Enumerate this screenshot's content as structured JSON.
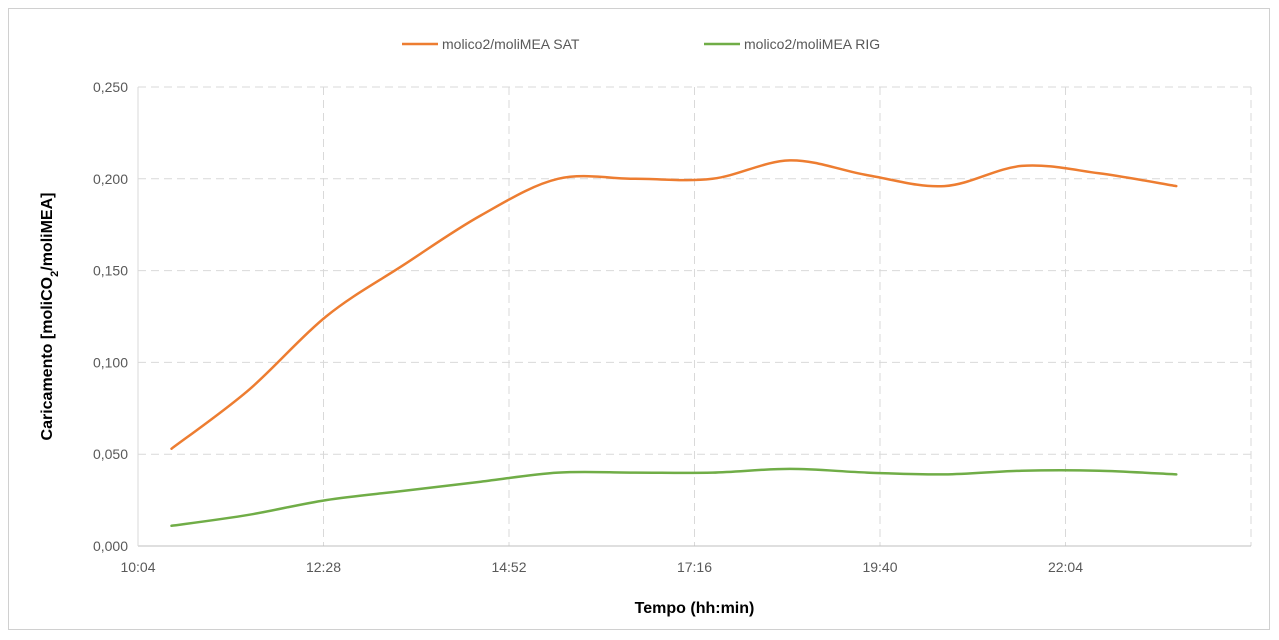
{
  "chart_data": {
    "type": "line",
    "xlabel": "Tempo (hh:min)",
    "ylabel": {
      "prefix": "Caricamento [moliCO",
      "subscript": "2",
      "suffix": "/moliMEA]"
    },
    "x_tick_labels": [
      "10:04",
      "12:28",
      "14:52",
      "17:16",
      "19:40",
      "22:04"
    ],
    "x_tick_minutes": [
      604,
      748,
      892,
      1036,
      1180,
      1324
    ],
    "xlim_minutes": [
      604,
      1468
    ],
    "y_tick_labels": [
      "0,000",
      "0,050",
      "0,100",
      "0,150",
      "0,200",
      "0,250"
    ],
    "ylim": [
      0,
      0.25
    ],
    "y_ticks": [
      0,
      0.05,
      0.1,
      0.15,
      0.2,
      0.25
    ],
    "grid": true,
    "legend": "top",
    "x_minutes": [
      630,
      690,
      750,
      810,
      870,
      930,
      990,
      1050,
      1110,
      1170,
      1230,
      1290,
      1350,
      1410
    ],
    "x": [
      "10:30",
      "11:30",
      "12:30",
      "13:30",
      "14:30",
      "15:30",
      "16:30",
      "17:30",
      "18:30",
      "19:30",
      "20:30",
      "21:30",
      "22:30",
      "23:30"
    ],
    "series": [
      {
        "name": "molico2/moliMEA SAT",
        "color": "#ED7D31",
        "values": [
          0.053,
          0.085,
          0.125,
          0.153,
          0.18,
          0.2,
          0.2,
          0.2,
          0.21,
          0.202,
          0.196,
          0.207,
          0.203,
          0.196
        ]
      },
      {
        "name": "molico2/moliMEA RIG",
        "color": "#70AD47",
        "values": [
          0.011,
          0.017,
          0.025,
          0.03,
          0.035,
          0.04,
          0.04,
          0.04,
          0.042,
          0.04,
          0.039,
          0.041,
          0.041,
          0.039
        ]
      }
    ]
  }
}
